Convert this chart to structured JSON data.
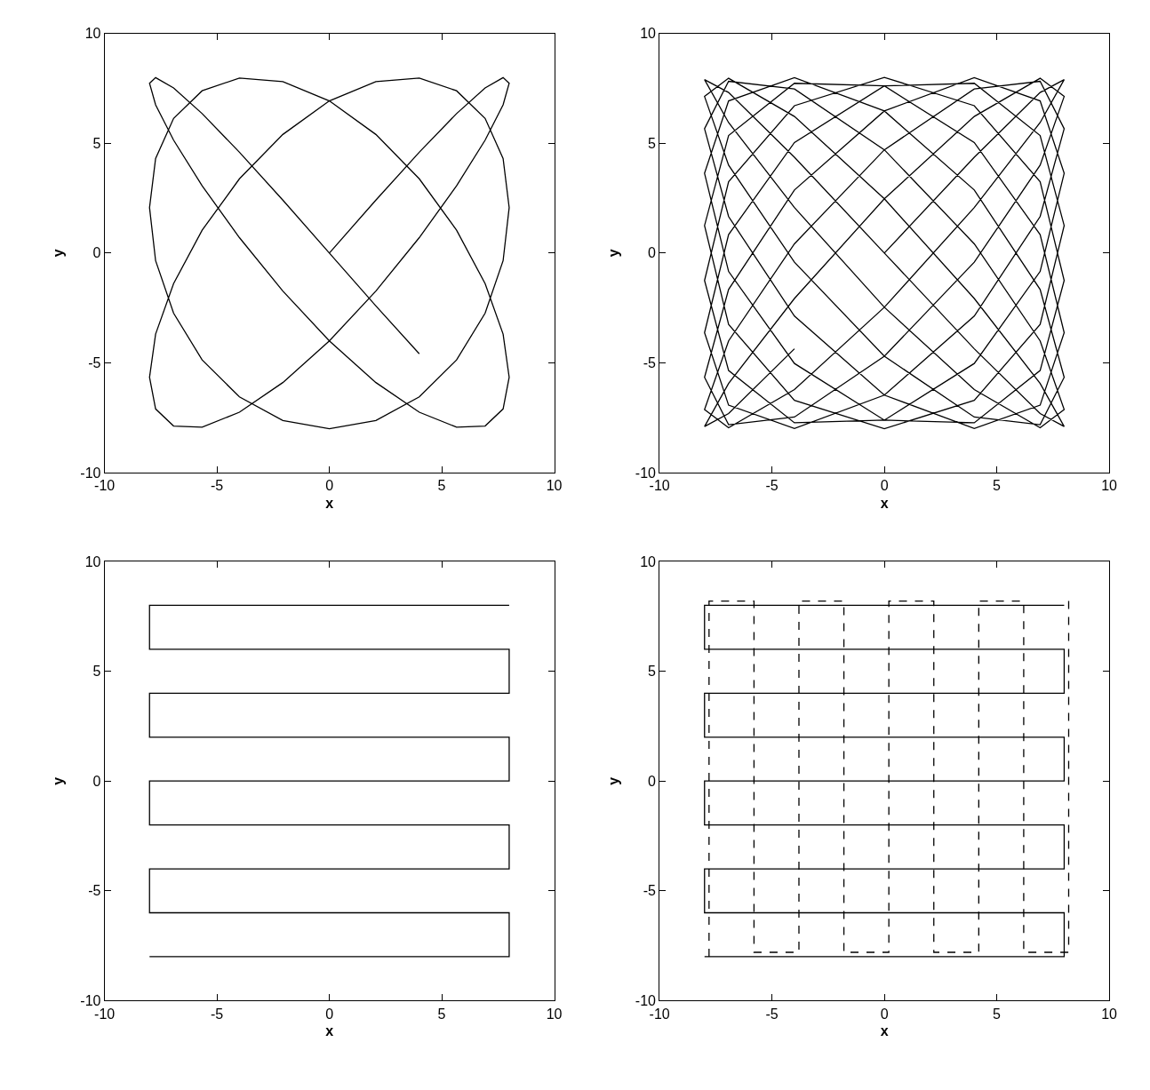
{
  "chart_data": [
    {
      "type": "line",
      "xlabel": "x",
      "ylabel": "y",
      "xlim": [
        -10,
        10
      ],
      "ylim": [
        -10,
        10
      ],
      "xticks": [
        -10,
        -5,
        0,
        5,
        10
      ],
      "yticks": [
        -10,
        -5,
        0,
        5,
        10
      ],
      "series": [
        {
          "color": "#000000",
          "line_style": "solid",
          "x": [
            0,
            2.07,
            4,
            5.66,
            6.93,
            7.73,
            8,
            7.73,
            6.93,
            5.66,
            4,
            2.07,
            0,
            -2.07,
            -4,
            -5.66,
            -6.93,
            -7.73,
            -8,
            -7.73,
            -6.93,
            -5.66,
            -4,
            -2.07,
            0,
            2.07,
            4,
            5.66,
            6.93,
            7.73,
            8,
            7.73,
            6.93,
            5.66,
            4,
            2.07,
            0,
            -2.07,
            -4,
            -5.66,
            -6.93,
            -7.73,
            -8,
            -7.73,
            -6.93,
            -5.66,
            -4,
            -2.07,
            0,
            2.07,
            4,
            5.66,
            6.93,
            7.73,
            8,
            7.73,
            6.93,
            5.66,
            4,
            2.07,
            0,
            -2.07,
            -4,
            -5.66,
            -6.93,
            -7.73,
            -8,
            -7.73,
            -6.93,
            -5.66,
            -4,
            -2.07,
            0,
            2.07,
            4
          ],
          "values": [
            0,
            2.41,
            4.59,
            6.35,
            7.52,
            7.99,
            7.73,
            6.75,
            5.14,
            3.06,
            0.7,
            -1.73,
            -4,
            -5.9,
            -7.25,
            -7.93,
            -7.88,
            -7.1,
            -5.66,
            -3.69,
            -1.39,
            1.04,
            3.38,
            5.4,
            6.93,
            7.81,
            7.97,
            7.39,
            6.13,
            4.3,
            2.07,
            -0.35,
            -2.74,
            -4.87,
            -6.55,
            -7.63,
            -8,
            -7.63,
            -6.55,
            -4.87,
            -2.74,
            -0.35,
            2.07,
            4.3,
            6.13,
            7.39,
            7.97,
            7.81,
            6.93,
            5.4,
            3.38,
            1.04,
            -1.39,
            -3.69,
            -5.66,
            -7.1,
            -7.88,
            -7.93,
            -7.25,
            -5.9,
            -4,
            -1.73,
            0.7,
            3.06,
            5.14,
            6.75,
            7.73,
            7.99,
            7.52,
            6.35,
            4.59,
            2.41,
            0,
            -2.41,
            -4.59
          ]
        }
      ]
    },
    {
      "type": "line",
      "xlabel": "x",
      "ylabel": "y",
      "xlim": [
        -10,
        10
      ],
      "ylim": [
        -10,
        10
      ],
      "xticks": [
        -10,
        -5,
        0,
        5,
        10
      ],
      "yticks": [
        -10,
        -5,
        0,
        5,
        10
      ],
      "series": [
        {
          "color": "#000000",
          "line_style": "solid",
          "x": [
            0,
            4,
            6.93,
            8,
            6.93,
            4,
            0,
            -4,
            -6.93,
            -8,
            -6.93,
            -4,
            0,
            4,
            6.93,
            8,
            6.93,
            4,
            0,
            -4,
            -6.93,
            -8,
            -6.93,
            -4,
            0,
            4,
            6.93,
            8,
            6.93,
            4,
            0,
            -4,
            -6.93,
            -8,
            -6.93,
            -4,
            0,
            4,
            6.93,
            8,
            6.93,
            4,
            0,
            -4,
            -6.93,
            -8,
            -6.93,
            -4,
            0,
            4,
            6.93,
            8,
            6.93,
            4,
            0,
            -4,
            -6.93,
            -8,
            -6.93,
            -4,
            0,
            4,
            6.93,
            8,
            6.93,
            4,
            0,
            -4,
            -6.93,
            -8,
            -6.93,
            -4,
            0,
            4,
            6.93,
            8,
            6.93,
            4,
            0,
            -4,
            -6.93,
            -8,
            -6.93,
            -4,
            0,
            4,
            6.93,
            8,
            6.93,
            4,
            0,
            -4,
            -6.93,
            -8,
            -6.93,
            -4,
            0,
            4,
            6.93,
            8,
            6.93,
            4,
            0,
            -4,
            -6.93,
            -8,
            -6.93,
            -4,
            0,
            4,
            6.93,
            8,
            6.93,
            4,
            0,
            -4,
            -6.93,
            -8,
            -6.93,
            -4
          ],
          "values": [
            0,
            4.36,
            7.31,
            7.9,
            5.94,
            2.07,
            -2.47,
            -6.22,
            -7.96,
            -7.13,
            -4,
            0.42,
            4.7,
            7.47,
            7.82,
            5.66,
            1.66,
            -2.87,
            -6.47,
            -7.99,
            -6.93,
            -3.63,
            0.84,
            5.03,
            7.61,
            7.73,
            5.35,
            1.25,
            -3.25,
            -6.71,
            -8,
            -6.71,
            -3.25,
            1.25,
            5.35,
            7.73,
            7.61,
            5.03,
            0.84,
            -3.63,
            -6.93,
            -7.99,
            -6.47,
            -2.87,
            1.66,
            5.66,
            7.82,
            7.47,
            4.7,
            0.42,
            -4,
            -7.13,
            -7.96,
            -6.22,
            -2.47,
            2.07,
            5.94,
            7.9,
            7.31,
            4.36,
            0,
            -4.36,
            -7.31,
            -7.9,
            -5.94,
            -2.07,
            2.47,
            6.22,
            7.96,
            7.13,
            4,
            -0.42,
            -4.7,
            -7.47,
            -7.82,
            -5.66,
            -1.66,
            2.87,
            6.47,
            7.99,
            6.93,
            3.63,
            -0.84,
            -5.03,
            -7.61,
            -7.73,
            -5.35,
            -1.25,
            3.25,
            6.71,
            8,
            6.71,
            3.25,
            -1.25,
            -5.35,
            -7.73,
            -7.61,
            -5.03,
            -0.84,
            3.63,
            6.93,
            7.99,
            6.47,
            2.87,
            -1.66,
            -5.66,
            -7.82,
            -7.47,
            -4.7,
            -0.42,
            4,
            7.13,
            7.96,
            6.22,
            2.47,
            -2.07,
            -5.94,
            -7.9,
            -7.31,
            -4.36
          ]
        }
      ]
    },
    {
      "type": "line",
      "xlabel": "x",
      "ylabel": "y",
      "xlim": [
        -10,
        10
      ],
      "ylim": [
        -10,
        10
      ],
      "xticks": [
        -10,
        -5,
        0,
        5,
        10
      ],
      "yticks": [
        -10,
        -5,
        0,
        5,
        10
      ],
      "series": [
        {
          "color": "#000000",
          "line_style": "solid",
          "x": [
            8,
            -8,
            -8,
            8,
            8,
            -8,
            -8,
            8,
            8,
            -8,
            -8,
            8,
            8,
            -8,
            -8,
            8,
            8,
            -8
          ],
          "values": [
            8,
            8,
            6,
            6,
            4,
            4,
            2,
            2,
            0,
            0,
            -2,
            -2,
            -4,
            -4,
            -6,
            -6,
            -8,
            -8
          ]
        }
      ]
    },
    {
      "type": "line",
      "xlabel": "x",
      "ylabel": "y",
      "xlim": [
        -10,
        10
      ],
      "ylim": [
        -10,
        10
      ],
      "xticks": [
        -10,
        -5,
        0,
        5,
        10
      ],
      "yticks": [
        -10,
        -5,
        0,
        5,
        10
      ],
      "series": [
        {
          "color": "#000000",
          "line_style": "solid",
          "x": [
            8,
            -8,
            -8,
            8,
            8,
            -8,
            -8,
            8,
            8,
            -8,
            -8,
            8,
            8,
            -8,
            -8,
            8,
            8,
            -8
          ],
          "values": [
            8,
            8,
            6,
            6,
            4,
            4,
            2,
            2,
            0,
            0,
            -2,
            -2,
            -4,
            -4,
            -6,
            -6,
            -8,
            -8
          ]
        },
        {
          "color": "#000000",
          "line_style": "dashed",
          "x": [
            -7.8,
            -7.8,
            -5.8,
            -5.8,
            -3.8,
            -3.8,
            -1.8,
            -1.8,
            0.2,
            0.2,
            2.2,
            2.2,
            4.2,
            4.2,
            6.2,
            6.2,
            8.2,
            8.2
          ],
          "values": [
            -8,
            8.2,
            8.2,
            -7.8,
            -7.8,
            8.2,
            8.2,
            -7.8,
            -7.8,
            8.2,
            8.2,
            -7.8,
            -7.8,
            8.2,
            8.2,
            -7.8,
            -7.8,
            8.2
          ]
        }
      ]
    }
  ]
}
